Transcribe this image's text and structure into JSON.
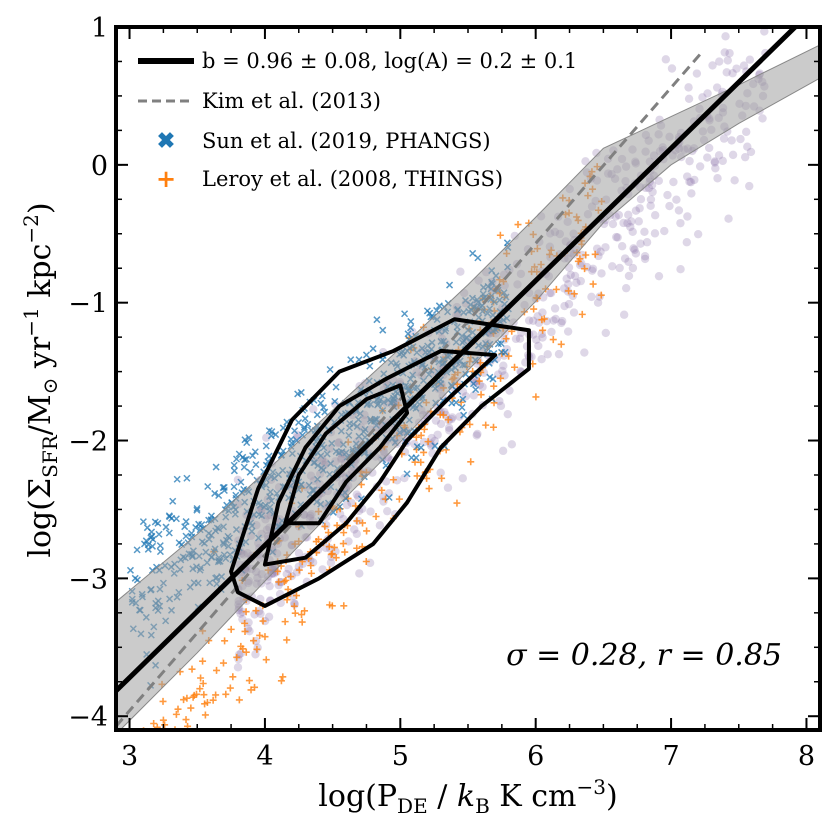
{
  "chart_data": {
    "type": "scatter",
    "xlabel": "log(P_DE / k_B K cm^-3)",
    "ylabel": "log(Σ_SFR/M_⊙ yr^-1 kpc^-2)",
    "xlim": [
      2.9,
      8.1
    ],
    "ylim": [
      -4.1,
      1.0
    ],
    "xticks": [
      3,
      4,
      5,
      6,
      7,
      8
    ],
    "xtick_labels": [
      "3",
      "4",
      "5",
      "6",
      "7",
      "8"
    ],
    "yticks": [
      1,
      0,
      -1,
      -2,
      -3,
      -4
    ],
    "ytick_labels": [
      "1",
      "0",
      "−1",
      "−2",
      "−3",
      "−4"
    ],
    "legend_position": "top-left",
    "colors": {
      "fit": "#000000",
      "kim": "#808080",
      "sun": "#1f77b4",
      "leroy": "#ff7f0e",
      "background": "#8a70a8",
      "band": "#a0a0a0"
    },
    "legend": [
      {
        "key": "fit",
        "label": "b = 0.96 ± 0.08, log(A) = 0.2 ± 0.1"
      },
      {
        "key": "kim",
        "label": "Kim et al. (2013)"
      },
      {
        "key": "sun",
        "label": "Sun et al. (2019, PHANGS)"
      },
      {
        "key": "leroy",
        "label": "Leroy et al. (2008, THINGS)"
      }
    ],
    "fit_line": {
      "slope": 0.96,
      "intercept": -6.6,
      "x": [
        2.9,
        8.1
      ]
    },
    "fit_band": {
      "x": [
        2.9,
        3.5,
        4.0,
        4.5,
        5.0,
        5.5,
        6.0,
        6.5,
        7.0,
        7.5,
        8.1
      ],
      "upper": [
        -3.17,
        -2.68,
        -2.23,
        -1.78,
        -1.33,
        -0.87,
        -0.38,
        0.12,
        0.35,
        0.58,
        0.87
      ],
      "lower": [
        -4.13,
        -3.54,
        -3.02,
        -2.51,
        -2.01,
        -1.49,
        -0.99,
        -0.42,
        0.0,
        0.3,
        0.63
      ]
    },
    "kim_line": {
      "slope": 1.13,
      "intercept": -7.35,
      "x": [
        2.9,
        7.24
      ]
    },
    "contours": [
      {
        "level": "outer",
        "points": [
          [
            3.75,
            -2.95
          ],
          [
            3.95,
            -2.35
          ],
          [
            4.2,
            -1.85
          ],
          [
            4.55,
            -1.5
          ],
          [
            4.95,
            -1.35
          ],
          [
            5.4,
            -1.12
          ],
          [
            5.95,
            -1.2
          ],
          [
            5.95,
            -1.48
          ],
          [
            5.6,
            -1.75
          ],
          [
            5.3,
            -2.05
          ],
          [
            5.05,
            -2.45
          ],
          [
            4.8,
            -2.75
          ],
          [
            4.4,
            -3.0
          ],
          [
            4.0,
            -3.2
          ],
          [
            3.8,
            -3.1
          ]
        ]
      },
      {
        "level": "middle",
        "points": [
          [
            4.0,
            -2.9
          ],
          [
            4.1,
            -2.45
          ],
          [
            4.3,
            -2.05
          ],
          [
            4.55,
            -1.75
          ],
          [
            4.9,
            -1.55
          ],
          [
            5.3,
            -1.35
          ],
          [
            5.7,
            -1.38
          ],
          [
            5.35,
            -1.7
          ],
          [
            5.05,
            -2.0
          ],
          [
            4.85,
            -2.3
          ],
          [
            4.6,
            -2.6
          ],
          [
            4.3,
            -2.85
          ]
        ]
      },
      {
        "level": "inner",
        "points": [
          [
            4.15,
            -2.6
          ],
          [
            4.25,
            -2.25
          ],
          [
            4.45,
            -1.95
          ],
          [
            4.75,
            -1.7
          ],
          [
            5.0,
            -1.6
          ],
          [
            5.05,
            -1.8
          ],
          [
            4.85,
            -2.05
          ],
          [
            4.6,
            -2.3
          ],
          [
            4.4,
            -2.6
          ]
        ]
      }
    ],
    "annotation": "σ = 0.28, r = 0.85"
  }
}
